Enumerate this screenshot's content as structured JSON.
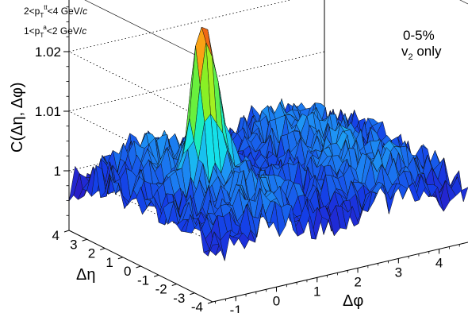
{
  "chart_data": {
    "type": "surface",
    "zlabel": "C(Δη, Δφ)",
    "xlabel": "Δφ",
    "ylabel": "Δη",
    "z_ticks": [
      "1",
      "1.01",
      "1.02"
    ],
    "x_ticks": [
      "-1",
      "0",
      "1",
      "2",
      "3",
      "4"
    ],
    "y_ticks": [
      "-4",
      "-3",
      "-2",
      "-1",
      "0",
      "1",
      "2",
      "3",
      "4"
    ],
    "xlim": [
      -1.57,
      4.71
    ],
    "ylim": [
      -4,
      4
    ],
    "zlim": [
      0.99,
      1.03
    ],
    "annotations": {
      "centrality": "0-5%",
      "method": "v2 only",
      "trig_pt": "2<p_T^t<4 GeV/c",
      "assoc_pt": "1<p_T^a<2 GeV/c"
    },
    "features": {
      "near_side_peak_height": 1.026,
      "near_side_peak_dphi": 0,
      "near_side_peak_deta": 0,
      "background_level": 1.0,
      "away_side_dphi": 3.14
    }
  }
}
